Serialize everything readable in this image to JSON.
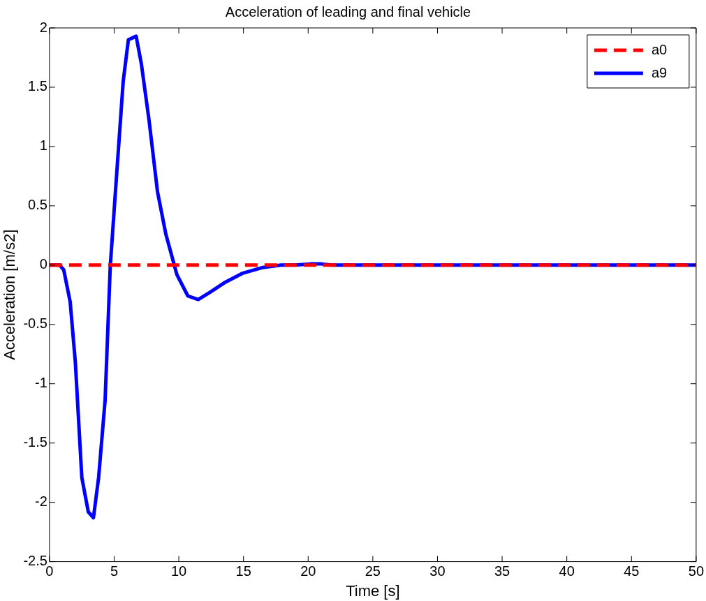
{
  "chart_data": {
    "type": "line",
    "title": "Acceleration of leading and final vehicle",
    "xlabel": "Time [s]",
    "ylabel": "Acceleration [m/s2]",
    "xlim": [
      0,
      50
    ],
    "xticks": [
      0,
      5,
      10,
      15,
      20,
      25,
      30,
      35,
      40,
      45,
      50
    ],
    "ylim": [
      -2.5,
      2
    ],
    "yticks": [
      -2.5,
      -2,
      -1.5,
      -1,
      -0.5,
      0,
      0.5,
      1,
      1.5,
      2
    ],
    "grid": false,
    "legend": "top right",
    "marker": "none",
    "series": [
      {
        "name": "a0",
        "color": "#ff0000",
        "line_style": "dashed",
        "x": [
          0,
          50
        ],
        "values": [
          0,
          0
        ]
      },
      {
        "name": "a9",
        "color": "#0000ff",
        "line_style": "solid",
        "x": [
          0,
          0.8,
          1.1,
          1.6,
          2,
          2.5,
          3,
          3.4,
          3.8,
          4.3,
          4.7,
          5.1,
          5.7,
          6.1,
          6.7,
          7.1,
          7.7,
          8.35,
          9,
          9.85,
          10.7,
          11.5,
          12.4,
          13.5,
          14.9,
          16.5,
          17.9,
          19,
          20.2,
          21,
          21.8,
          50
        ],
        "values": [
          0,
          0,
          -0.04,
          -0.31,
          -0.82,
          -1.79,
          -2.08,
          -2.13,
          -1.79,
          -1.14,
          -0.01,
          0.62,
          1.55,
          1.9,
          1.93,
          1.7,
          1.22,
          0.62,
          0.26,
          -0.08,
          -0.26,
          -0.29,
          -0.23,
          -0.15,
          -0.07,
          -0.02,
          0,
          0,
          0.01,
          0.01,
          0,
          0
        ]
      }
    ]
  }
}
